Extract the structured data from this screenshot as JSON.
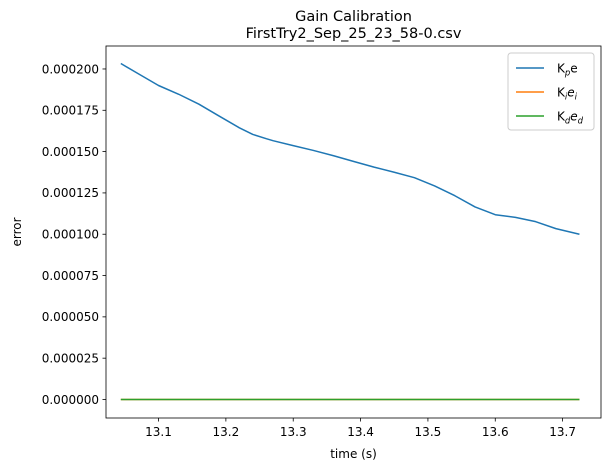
{
  "chart_data": {
    "type": "line",
    "title": "Gain Calibration",
    "subtitle": "FirstTry2_Sep_25_23_58-0.csv",
    "xlabel": "time (s)",
    "ylabel": "error",
    "xlim": [
      13.022,
      13.757
    ],
    "ylim": [
      -1.12e-05,
      0.0002139
    ],
    "xticks": [
      13.1,
      13.2,
      13.3,
      13.4,
      13.5,
      13.6,
      13.7
    ],
    "xtick_labels": [
      "13.1",
      "13.2",
      "13.3",
      "13.4",
      "13.5",
      "13.6",
      "13.7"
    ],
    "yticks": [
      0,
      2.5e-05,
      5e-05,
      7.5e-05,
      0.0001,
      0.000125,
      0.00015,
      0.000175,
      0.0002
    ],
    "ytick_labels": [
      "0.000000",
      "0.000025",
      "0.000050",
      "0.000075",
      "0.000100",
      "0.000125",
      "0.000150",
      "0.000175",
      "0.000200"
    ],
    "grid": false,
    "legend_position": "top-right",
    "series": [
      {
        "name": "Kpe",
        "legend": {
          "main": "K",
          "sub": "p",
          "tail": "e",
          "tail_sub": ""
        },
        "color": "#1f77b4",
        "x": [
          13.044,
          13.07,
          13.1,
          13.13,
          13.16,
          13.19,
          13.22,
          13.24,
          13.26,
          13.27,
          13.3,
          13.33,
          13.36,
          13.39,
          13.42,
          13.45,
          13.48,
          13.51,
          13.54,
          13.57,
          13.6,
          13.63,
          13.66,
          13.69,
          13.725
        ],
        "y": [
          0.0002033,
          0.0001971,
          0.00019,
          0.0001847,
          0.0001787,
          0.0001715,
          0.0001644,
          0.0001604,
          0.0001578,
          0.0001566,
          0.0001536,
          0.0001507,
          0.0001475,
          0.000144,
          0.0001406,
          0.0001375,
          0.0001342,
          0.0001292,
          0.0001233,
          0.0001165,
          0.0001118,
          0.0001102,
          0.0001076,
          0.0001034,
          0.0001
        ]
      },
      {
        "name": "Kiei",
        "legend": {
          "main": "K",
          "sub": "i",
          "tail": "e",
          "tail_sub": "i"
        },
        "color": "#ff7f0e",
        "x": [
          13.044,
          13.725
        ],
        "y": [
          0,
          0
        ]
      },
      {
        "name": "Kded",
        "legend": {
          "main": "K",
          "sub": "d",
          "tail": "e",
          "tail_sub": "d"
        },
        "color": "#2ca02c",
        "x": [
          13.044,
          13.725
        ],
        "y": [
          0,
          0
        ]
      }
    ]
  }
}
